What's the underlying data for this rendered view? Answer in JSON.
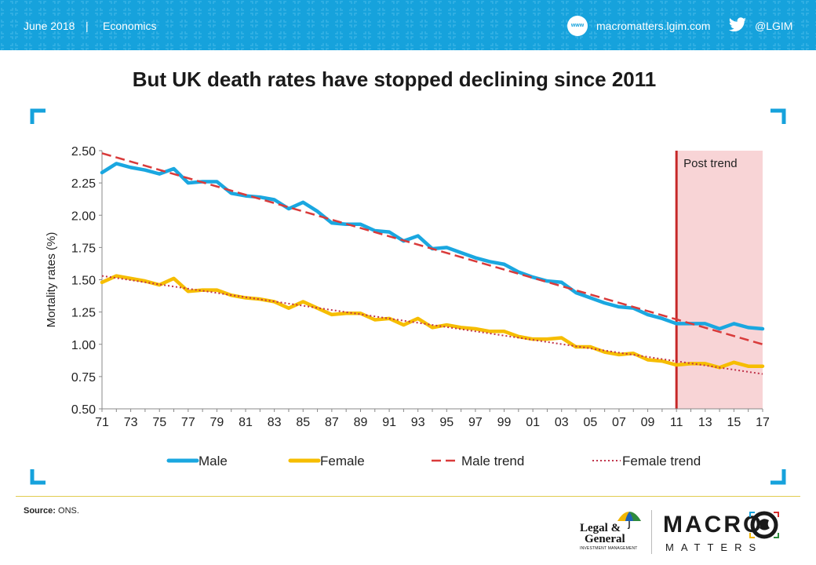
{
  "header": {
    "date": "June 2018",
    "separator": "|",
    "category": "Economics",
    "www_label": "www",
    "website": "macromatters.lgim.com",
    "twitter_handle": "@LGIM",
    "bg_color": "#16a2dc"
  },
  "chart_data": {
    "type": "line",
    "title": "But UK death rates have stopped declining since 2011",
    "ylabel": "Mortality rates (%)",
    "xlabel": "",
    "ylim": [
      0.5,
      2.5
    ],
    "yticks": [
      "2.50",
      "2.25",
      "2.00",
      "1.75",
      "1.50",
      "1.25",
      "1.00",
      "0.75",
      "0.50"
    ],
    "x": [
      1971,
      1972,
      1973,
      1974,
      1975,
      1976,
      1977,
      1978,
      1979,
      1980,
      1981,
      1982,
      1983,
      1984,
      1985,
      1986,
      1987,
      1988,
      1989,
      1990,
      1991,
      1992,
      1993,
      1994,
      1995,
      1996,
      1997,
      1998,
      1999,
      2000,
      2001,
      2002,
      2003,
      2004,
      2005,
      2006,
      2007,
      2008,
      2009,
      2010,
      2011,
      2012,
      2013,
      2014,
      2015,
      2016,
      2017
    ],
    "xtick_labels": [
      "71",
      "73",
      "75",
      "77",
      "79",
      "81",
      "83",
      "85",
      "87",
      "89",
      "91",
      "93",
      "95",
      "97",
      "99",
      "01",
      "03",
      "05",
      "07",
      "09",
      "11",
      "13",
      "15",
      "17"
    ],
    "series": [
      {
        "name": "Male",
        "color": "#1aa7e0",
        "style": "solid",
        "values": [
          2.33,
          2.4,
          2.37,
          2.35,
          2.32,
          2.36,
          2.25,
          2.26,
          2.26,
          2.17,
          2.15,
          2.14,
          2.12,
          2.05,
          2.1,
          2.03,
          1.94,
          1.93,
          1.93,
          1.88,
          1.87,
          1.8,
          1.84,
          1.74,
          1.75,
          1.71,
          1.67,
          1.64,
          1.62,
          1.56,
          1.52,
          1.49,
          1.48,
          1.4,
          1.36,
          1.32,
          1.29,
          1.28,
          1.23,
          1.2,
          1.16,
          1.16,
          1.16,
          1.12,
          1.16,
          1.13,
          1.12
        ]
      },
      {
        "name": "Female",
        "color": "#f6bd00",
        "style": "solid",
        "values": [
          1.48,
          1.53,
          1.51,
          1.49,
          1.46,
          1.51,
          1.41,
          1.42,
          1.42,
          1.38,
          1.36,
          1.35,
          1.33,
          1.28,
          1.33,
          1.28,
          1.23,
          1.24,
          1.24,
          1.19,
          1.2,
          1.15,
          1.2,
          1.13,
          1.15,
          1.13,
          1.12,
          1.1,
          1.1,
          1.06,
          1.04,
          1.04,
          1.05,
          0.98,
          0.98,
          0.94,
          0.92,
          0.93,
          0.88,
          0.87,
          0.84,
          0.85,
          0.85,
          0.82,
          0.86,
          0.83,
          0.83
        ]
      },
      {
        "name": "Male trend",
        "color": "#d93b3b",
        "style": "dashed",
        "from": 1971,
        "to": 2017,
        "start": 2.48,
        "end": 1.0
      },
      {
        "name": "Female trend",
        "color": "#c0334a",
        "style": "dotted",
        "from": 1971,
        "to": 2017,
        "start": 1.53,
        "end": 0.77
      }
    ],
    "annotation": {
      "label": "Post trend",
      "x_start": 2011,
      "x_end": 2017,
      "line_color": "#c62828",
      "fill_color": "#f8d4d6"
    },
    "legend": [
      "Male",
      "Female",
      "Male trend",
      "Female trend"
    ],
    "legend_position": "bottom",
    "grid": false
  },
  "footer": {
    "source_label": "Source:",
    "source_value": "ONS.",
    "lg_line1": "Legal &",
    "lg_line2": "General",
    "lg_sub": "INVESTMENT MANAGEMENT",
    "macro_word": "MACRO",
    "matters_word": "MATTERS"
  }
}
